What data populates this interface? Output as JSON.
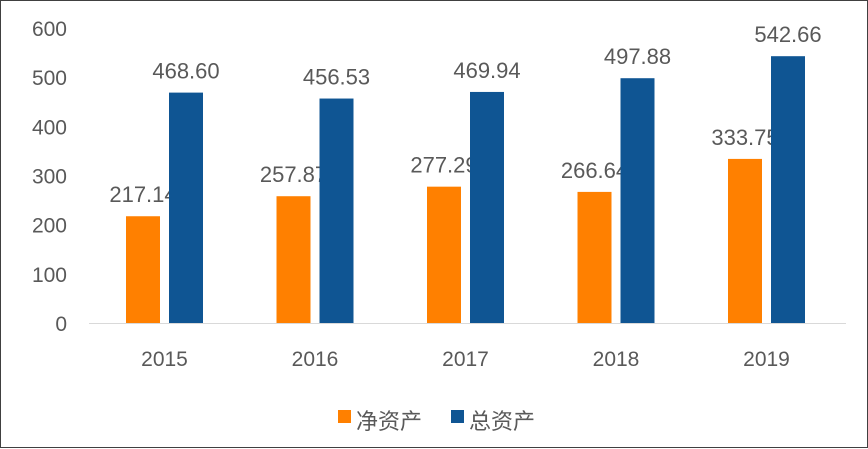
{
  "chart_data": {
    "type": "bar",
    "categories": [
      "2015",
      "2016",
      "2017",
      "2018",
      "2019"
    ],
    "series": [
      {
        "name": "净资产",
        "values": [
          217.14,
          257.87,
          277.29,
          266.64,
          333.75
        ],
        "color": "#FF8000"
      },
      {
        "name": "总资产",
        "values": [
          468.6,
          456.53,
          469.94,
          497.88,
          542.66
        ],
        "color": "#0F5593"
      }
    ],
    "ylim": [
      0,
      600
    ],
    "yticks": [
      0,
      100,
      200,
      300,
      400,
      500,
      600
    ],
    "grid": false,
    "legend": "bottom",
    "data_labels": true,
    "title": "",
    "xlabel": "",
    "ylabel": ""
  }
}
